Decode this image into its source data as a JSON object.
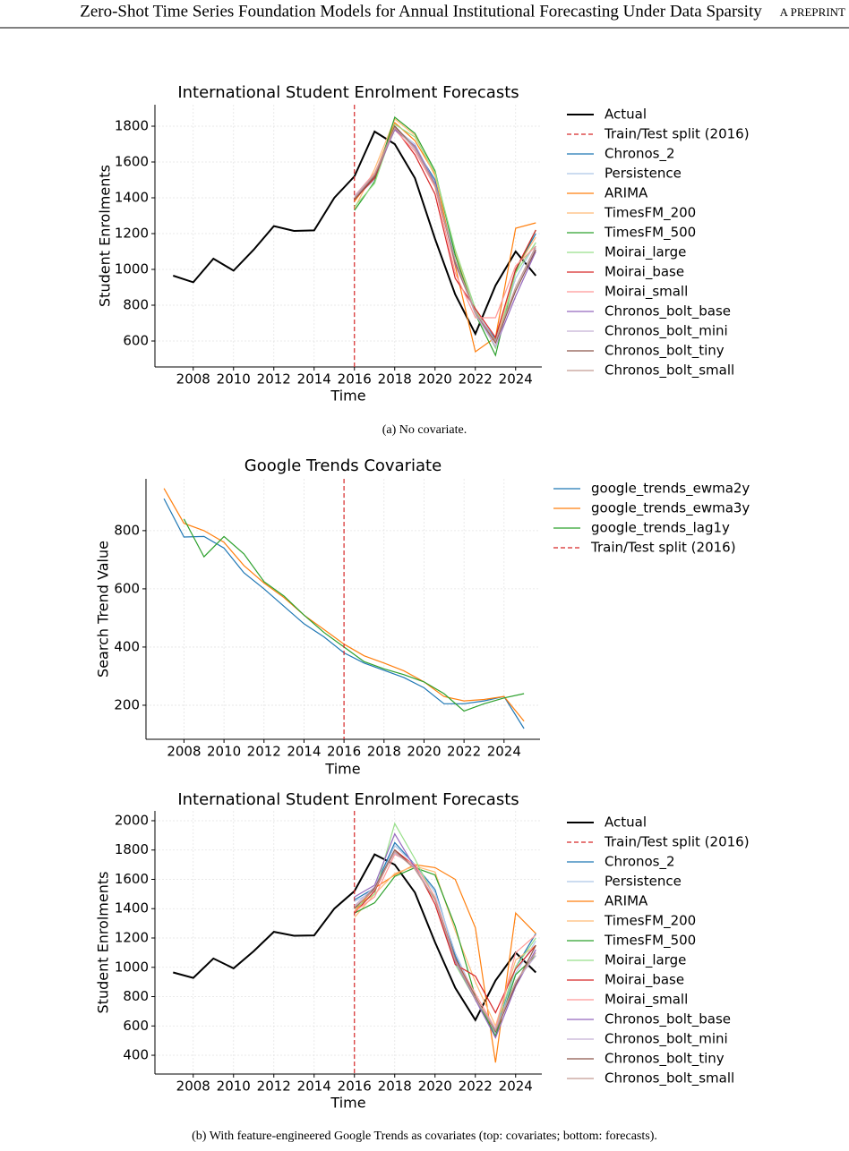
{
  "header": {
    "title": "Zero-Shot Time Series Foundation Models for Annual Institutional Forecasting Under Data Sparsity",
    "right": "A PREPRINT"
  },
  "captions": [
    "(a) No covariate.",
    "(b) With feature-engineered Google Trends as covariates (top: covariates; bottom: forecasts)."
  ],
  "chart_data": [
    {
      "type": "line",
      "title": "International Student Enrolment Forecasts",
      "x_label": "Time",
      "y_label": "Student Enrolments",
      "grid": true,
      "x": [
        2007,
        2008,
        2009,
        2010,
        2011,
        2012,
        2013,
        2014,
        2015,
        2016,
        2017,
        2018,
        2019,
        2020,
        2021,
        2022,
        2023,
        2024,
        2025
      ],
      "xlim": [
        2006.1,
        2025.3
      ],
      "ylim": [
        455,
        1920
      ],
      "xticks": [
        2008,
        2010,
        2012,
        2014,
        2016,
        2018,
        2020,
        2022,
        2024
      ],
      "yticks": [
        600,
        800,
        1000,
        1200,
        1400,
        1600,
        1800
      ],
      "series": [
        {
          "name": "Actual",
          "color": "#000000",
          "linewidth": 2,
          "values": [
            965,
            928,
            1060,
            993,
            1110,
            1242,
            1215,
            1218,
            1400,
            1520,
            1770,
            1700,
            1510,
            1170,
            860,
            640,
            910,
            1100,
            965
          ]
        },
        {
          "name": "Train/Test split (2016)",
          "color": "#d62728",
          "style": "dashed",
          "x": 2016
        },
        {
          "name": "Chronos_2",
          "color": "#1f77b4",
          "values": [
            null,
            null,
            null,
            null,
            null,
            null,
            null,
            null,
            null,
            1390,
            1520,
            1800,
            1680,
            1500,
            1050,
            760,
            610,
            1000,
            1200
          ]
        },
        {
          "name": "Persistence",
          "color": "#aec7e8",
          "values": [
            null,
            null,
            null,
            null,
            null,
            null,
            null,
            null,
            null,
            1400,
            1500,
            1790,
            1700,
            1480,
            1080,
            770,
            600,
            950,
            1150
          ]
        },
        {
          "name": "ARIMA",
          "color": "#ff7f0e",
          "values": [
            null,
            null,
            null,
            null,
            null,
            null,
            null,
            null,
            null,
            1380,
            1530,
            1820,
            1720,
            1530,
            1020,
            540,
            620,
            1230,
            1260
          ]
        },
        {
          "name": "TimesFM_200",
          "color": "#ffbb78",
          "values": [
            null,
            null,
            null,
            null,
            null,
            null,
            null,
            null,
            null,
            1340,
            1560,
            1840,
            1750,
            1520,
            1100,
            750,
            590,
            1000,
            1180
          ]
        },
        {
          "name": "TimesFM_500",
          "color": "#2ca02c",
          "values": [
            null,
            null,
            null,
            null,
            null,
            null,
            null,
            null,
            null,
            1330,
            1490,
            1850,
            1760,
            1550,
            1080,
            750,
            520,
            990,
            1220
          ]
        },
        {
          "name": "Moirai_large",
          "color": "#98df8a",
          "values": [
            null,
            null,
            null,
            null,
            null,
            null,
            null,
            null,
            null,
            1350,
            1480,
            1810,
            1740,
            1540,
            1110,
            780,
            560,
            980,
            1150
          ]
        },
        {
          "name": "Moirai_base",
          "color": "#d62728",
          "values": [
            null,
            null,
            null,
            null,
            null,
            null,
            null,
            null,
            null,
            1390,
            1510,
            1790,
            1640,
            1420,
            950,
            780,
            620,
            1000,
            1220
          ]
        },
        {
          "name": "Moirai_small",
          "color": "#ff9896",
          "values": [
            null,
            null,
            null,
            null,
            null,
            null,
            null,
            null,
            null,
            1410,
            1540,
            1780,
            1660,
            1460,
            980,
            730,
            730,
            1020,
            1130
          ]
        },
        {
          "name": "Chronos_bolt_base",
          "color": "#9467bd",
          "values": [
            null,
            null,
            null,
            null,
            null,
            null,
            null,
            null,
            null,
            1400,
            1520,
            1780,
            1690,
            1480,
            1030,
            760,
            570,
            850,
            1100
          ]
        },
        {
          "name": "Chronos_bolt_mini",
          "color": "#c5b0d5",
          "values": [
            null,
            null,
            null,
            null,
            null,
            null,
            null,
            null,
            null,
            1410,
            1530,
            1800,
            1670,
            1470,
            1040,
            750,
            570,
            900,
            1120
          ]
        },
        {
          "name": "Chronos_bolt_tiny",
          "color": "#8c564b",
          "values": [
            null,
            null,
            null,
            null,
            null,
            null,
            null,
            null,
            null,
            1390,
            1520,
            1800,
            1680,
            1470,
            1040,
            760,
            590,
            880,
            1110
          ]
        },
        {
          "name": "Chronos_bolt_small",
          "color": "#c49c94",
          "values": [
            null,
            null,
            null,
            null,
            null,
            null,
            null,
            null,
            null,
            1400,
            1530,
            1790,
            1680,
            1470,
            1050,
            760,
            600,
            900,
            1130
          ]
        }
      ]
    },
    {
      "type": "line",
      "title": "Google Trends Covariate",
      "x_label": "Time",
      "y_label": "Search Trend Value",
      "grid": true,
      "x": [
        2007,
        2008,
        2009,
        2010,
        2011,
        2012,
        2013,
        2014,
        2015,
        2016,
        2017,
        2018,
        2019,
        2020,
        2021,
        2022,
        2023,
        2024,
        2025
      ],
      "xlim": [
        2006.1,
        2025.8
      ],
      "ylim": [
        83,
        978
      ],
      "xticks": [
        2008,
        2010,
        2012,
        2014,
        2016,
        2018,
        2020,
        2022,
        2024
      ],
      "yticks": [
        200,
        400,
        600,
        800
      ],
      "series": [
        {
          "name": "google_trends_ewma2y",
          "color": "#1f77b4",
          "values": [
            910,
            778,
            780,
            740,
            655,
            600,
            540,
            480,
            435,
            380,
            345,
            320,
            295,
            260,
            205,
            205,
            215,
            230,
            120
          ]
        },
        {
          "name": "google_trends_ewma3y",
          "color": "#ff7f0e",
          "values": [
            945,
            825,
            800,
            760,
            680,
            620,
            570,
            510,
            460,
            410,
            370,
            345,
            318,
            280,
            230,
            215,
            220,
            230,
            145
          ]
        },
        {
          "name": "google_trends_lag1y",
          "color": "#2ca02c",
          "values": [
            null,
            840,
            710,
            780,
            720,
            625,
            575,
            510,
            450,
            400,
            350,
            325,
            305,
            280,
            240,
            180,
            205,
            225,
            240
          ]
        },
        {
          "name": "Train/Test split (2016)",
          "color": "#d62728",
          "style": "dashed",
          "x": 2016
        }
      ]
    },
    {
      "type": "line",
      "title": "International Student Enrolment Forecasts",
      "x_label": "Time",
      "y_label": "Student Enrolments",
      "grid": true,
      "x": [
        2007,
        2008,
        2009,
        2010,
        2011,
        2012,
        2013,
        2014,
        2015,
        2016,
        2017,
        2018,
        2019,
        2020,
        2021,
        2022,
        2023,
        2024,
        2025
      ],
      "xlim": [
        2006.1,
        2025.3
      ],
      "ylim": [
        272,
        2067
      ],
      "xticks": [
        2008,
        2010,
        2012,
        2014,
        2016,
        2018,
        2020,
        2022,
        2024
      ],
      "yticks": [
        400,
        600,
        800,
        1000,
        1200,
        1400,
        1600,
        1800,
        2000
      ],
      "series": [
        {
          "name": "Actual",
          "color": "#000000",
          "linewidth": 2,
          "values": [
            965,
            928,
            1060,
            993,
            1110,
            1242,
            1215,
            1218,
            1400,
            1520,
            1770,
            1700,
            1510,
            1170,
            860,
            640,
            910,
            1100,
            965
          ]
        },
        {
          "name": "Train/Test split (2016)",
          "color": "#d62728",
          "style": "dashed",
          "x": 2016
        },
        {
          "name": "Chronos_2",
          "color": "#1f77b4",
          "values": [
            null,
            null,
            null,
            null,
            null,
            null,
            null,
            null,
            null,
            1460,
            1540,
            1850,
            1700,
            1530,
            1080,
            780,
            560,
            1000,
            1230
          ]
        },
        {
          "name": "Persistence",
          "color": "#aec7e8",
          "values": [
            null,
            null,
            null,
            null,
            null,
            null,
            null,
            null,
            null,
            1450,
            1520,
            1830,
            1700,
            1510,
            1100,
            800,
            550,
            960,
            1180
          ]
        },
        {
          "name": "ARIMA",
          "color": "#ff7f0e",
          "values": [
            null,
            null,
            null,
            null,
            null,
            null,
            null,
            null,
            null,
            1380,
            1540,
            1630,
            1700,
            1680,
            1600,
            1270,
            350,
            1370,
            1230
          ]
        },
        {
          "name": "TimesFM_200",
          "color": "#ffbb78",
          "values": [
            null,
            null,
            null,
            null,
            null,
            null,
            null,
            null,
            null,
            1340,
            1500,
            1640,
            1690,
            1650,
            1250,
            900,
            600,
            1050,
            1150
          ]
        },
        {
          "name": "TimesFM_500",
          "color": "#2ca02c",
          "values": [
            null,
            null,
            null,
            null,
            null,
            null,
            null,
            null,
            null,
            1370,
            1440,
            1620,
            1680,
            1630,
            1280,
            800,
            530,
            950,
            1080
          ]
        },
        {
          "name": "Moirai_large",
          "color": "#98df8a",
          "values": [
            null,
            null,
            null,
            null,
            null,
            null,
            null,
            null,
            null,
            1400,
            1500,
            1980,
            1740,
            1470,
            1020,
            780,
            580,
            1000,
            1200
          ]
        },
        {
          "name": "Moirai_base",
          "color": "#d62728",
          "values": [
            null,
            null,
            null,
            null,
            null,
            null,
            null,
            null,
            null,
            1370,
            1520,
            1800,
            1690,
            1430,
            1020,
            940,
            690,
            990,
            1150
          ]
        },
        {
          "name": "Moirai_small",
          "color": "#ff9896",
          "values": [
            null,
            null,
            null,
            null,
            null,
            null,
            null,
            null,
            null,
            1380,
            1480,
            1770,
            1700,
            1480,
            1060,
            820,
            580,
            1100,
            1220
          ]
        },
        {
          "name": "Chronos_bolt_base",
          "color": "#9467bd",
          "values": [
            null,
            null,
            null,
            null,
            null,
            null,
            null,
            null,
            null,
            1480,
            1560,
            1910,
            1680,
            1460,
            1040,
            780,
            520,
            870,
            1120
          ]
        },
        {
          "name": "Chronos_bolt_mini",
          "color": "#c5b0d5",
          "values": [
            null,
            null,
            null,
            null,
            null,
            null,
            null,
            null,
            null,
            1420,
            1550,
            1780,
            1680,
            1460,
            1050,
            790,
            580,
            900,
            1080
          ]
        },
        {
          "name": "Chronos_bolt_tiny",
          "color": "#8c564b",
          "values": [
            null,
            null,
            null,
            null,
            null,
            null,
            null,
            null,
            null,
            1400,
            1540,
            1800,
            1670,
            1460,
            1060,
            800,
            560,
            880,
            1150
          ]
        },
        {
          "name": "Chronos_bolt_small",
          "color": "#c49c94",
          "values": [
            null,
            null,
            null,
            null,
            null,
            null,
            null,
            null,
            null,
            1410,
            1530,
            1790,
            1670,
            1460,
            1050,
            790,
            570,
            900,
            1100
          ]
        }
      ]
    }
  ]
}
